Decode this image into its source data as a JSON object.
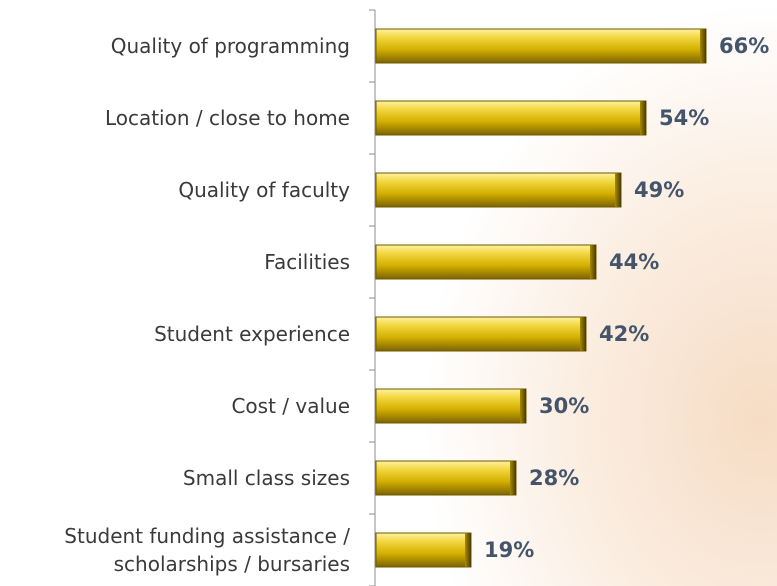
{
  "chart_data": {
    "type": "bar",
    "orientation": "horizontal",
    "categories": [
      "Quality of programming",
      "Location / close to home",
      "Quality of faculty",
      "Facilities",
      "Student experience",
      "Cost / value",
      "Small class sizes",
      "Student funding assistance / scholarships / bursaries"
    ],
    "values": [
      66,
      54,
      49,
      44,
      42,
      30,
      28,
      19
    ],
    "value_labels": [
      "66%",
      "54%",
      "49%",
      "44%",
      "42%",
      "30%",
      "28%",
      "19%"
    ],
    "color": "#d4b000"
  }
}
